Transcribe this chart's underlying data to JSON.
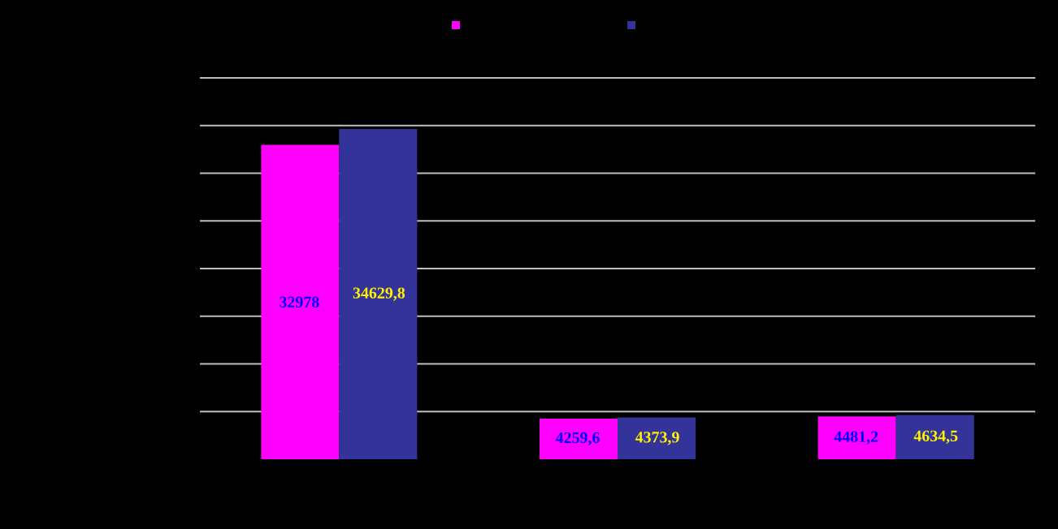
{
  "chart_data": {
    "type": "bar",
    "categories": [
      null,
      null,
      null
    ],
    "series": [
      {
        "color": "#ff00ff",
        "values": [
          32978,
          4259.6,
          4481.2
        ],
        "value_labels": [
          "32978",
          "4259,6",
          "4481,2"
        ]
      },
      {
        "color": "#333399",
        "values": [
          34629.8,
          4373.9,
          4634.5
        ],
        "value_labels": [
          "34629,8",
          "4373,9",
          "4634,5"
        ]
      }
    ],
    "ylim": [
      0,
      40000
    ],
    "yticks": [
      {
        "value": 5000,
        "label": null
      },
      {
        "value": 10000,
        "label": null
      },
      {
        "value": 15000,
        "label": null
      },
      {
        "value": 20000,
        "label": null
      },
      {
        "value": 25000,
        "label": null
      },
      {
        "value": 30000,
        "label": null
      },
      {
        "value": 35000,
        "label": null
      },
      {
        "value": 40000,
        "label": null
      }
    ],
    "grid": "y"
  }
}
